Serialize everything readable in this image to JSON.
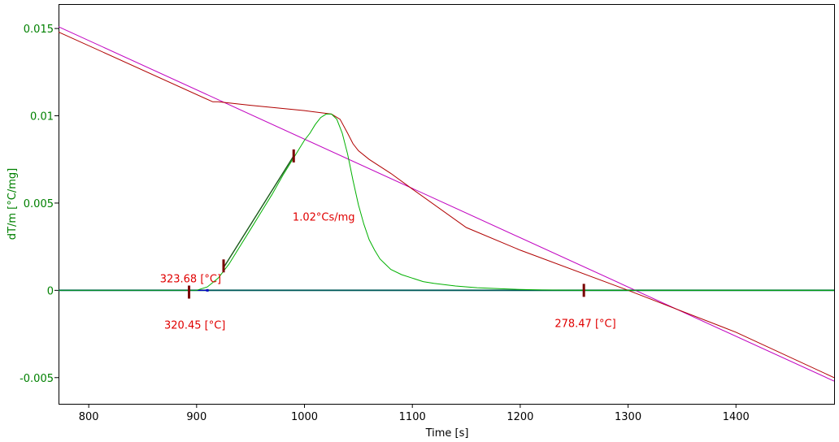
{
  "chart_data": {
    "type": "line",
    "xlabel": "Time [s]",
    "ylabel": "dT/m  [°C/mg]",
    "xlim": [
      772,
      1491
    ],
    "ylim": [
      -0.0065,
      0.0164
    ],
    "x_ticks": [
      {
        "value": 800,
        "label": "800"
      },
      {
        "value": 900,
        "label": "900"
      },
      {
        "value": 1000,
        "label": "1000"
      },
      {
        "value": 1100,
        "label": "1100"
      },
      {
        "value": 1200,
        "label": "1200"
      },
      {
        "value": 1300,
        "label": "1300"
      },
      {
        "value": 1400,
        "label": "1400"
      }
    ],
    "y_ticks": [
      {
        "value": 0.015,
        "label": "0.015"
      },
      {
        "value": 0.01,
        "label": "0.01"
      },
      {
        "value": 0.005,
        "label": "0.005"
      },
      {
        "value": 0,
        "label": "0"
      },
      {
        "value": -0.005,
        "label": "-0.005"
      }
    ],
    "grid": false,
    "colors": {
      "axis_text": "#008000",
      "annotation": "#e00000",
      "dtg_curve": "#00b000",
      "temperature_curve": "#b00000",
      "reference_line": "#c000c0",
      "baseline_teal": "#005a5a",
      "baseline_blue": "#0000c8",
      "markers": "#7a0000"
    },
    "series": [
      {
        "role": "dtg_curve",
        "x": [
          772,
          880,
          900,
          910,
          920,
          930,
          940,
          950,
          960,
          970,
          980,
          990,
          1000,
          1005,
          1010,
          1015,
          1020,
          1025,
          1030,
          1035,
          1040,
          1045,
          1050,
          1055,
          1060,
          1065,
          1070,
          1075,
          1080,
          1090,
          1100,
          1110,
          1120,
          1140,
          1160,
          1180,
          1200,
          1220,
          1240,
          1260,
          1300,
          1491
        ],
        "y": [
          0,
          0,
          0,
          0.0002,
          0.0007,
          0.0015,
          0.0025,
          0.0035,
          0.0045,
          0.0055,
          0.0066,
          0.0076,
          0.0086,
          0.009,
          0.0095,
          0.0099,
          0.0101,
          0.0101,
          0.0098,
          0.009,
          0.0078,
          0.0063,
          0.0049,
          0.0038,
          0.0029,
          0.0023,
          0.0018,
          0.0015,
          0.0012,
          0.0009,
          0.0007,
          0.0005,
          0.0004,
          0.00025,
          0.00015,
          0.0001,
          5e-05,
          2e-05,
          1e-05,
          0,
          0,
          0
        ]
      },
      {
        "role": "temperature_curve",
        "x": [
          772,
          915,
          920,
          950,
          1000,
          1025,
          1033,
          1040,
          1045,
          1050,
          1060,
          1070,
          1080,
          1100,
          1150,
          1200,
          1300,
          1400,
          1491
        ],
        "y": [
          0.0148,
          0.0108,
          0.0108,
          0.0106,
          0.0103,
          0.0101,
          0.0098,
          0.009,
          0.0084,
          0.008,
          0.0075,
          0.0071,
          0.0067,
          0.0058,
          0.0036,
          0.0023,
          0,
          -0.0024,
          -0.005
        ]
      },
      {
        "role": "reference_line",
        "x": [
          772,
          1491
        ],
        "y": [
          0.0151,
          -0.0052
        ]
      },
      {
        "role": "baseline_teal",
        "x": [
          772,
          1491
        ],
        "y": [
          0,
          0
        ]
      },
      {
        "role": "baseline_blue",
        "x": [
          772,
          910
        ],
        "y": [
          0,
          0
        ]
      }
    ],
    "tangent": {
      "x": [
        925,
        990
      ],
      "y": [
        0.0013,
        0.0077
      ]
    },
    "markers": [
      {
        "x": 893,
        "y": -0.0001
      },
      {
        "x": 910,
        "y": 0
      },
      {
        "x": 925,
        "y": 0.0014
      },
      {
        "x": 990,
        "y": 0.0077
      },
      {
        "x": 1259,
        "y": 0
      }
    ],
    "annotations": [
      {
        "text": "323.68 [°C]",
        "x": 866,
        "y": 0.00045
      },
      {
        "text": "320.45 [°C]",
        "x": 870,
        "y": -0.0022
      },
      {
        "text": "1.02°Cs/mg",
        "x": 989,
        "y": 0.004
      },
      {
        "text": "278.47 [°C]",
        "x": 1232,
        "y": -0.0021
      }
    ]
  }
}
